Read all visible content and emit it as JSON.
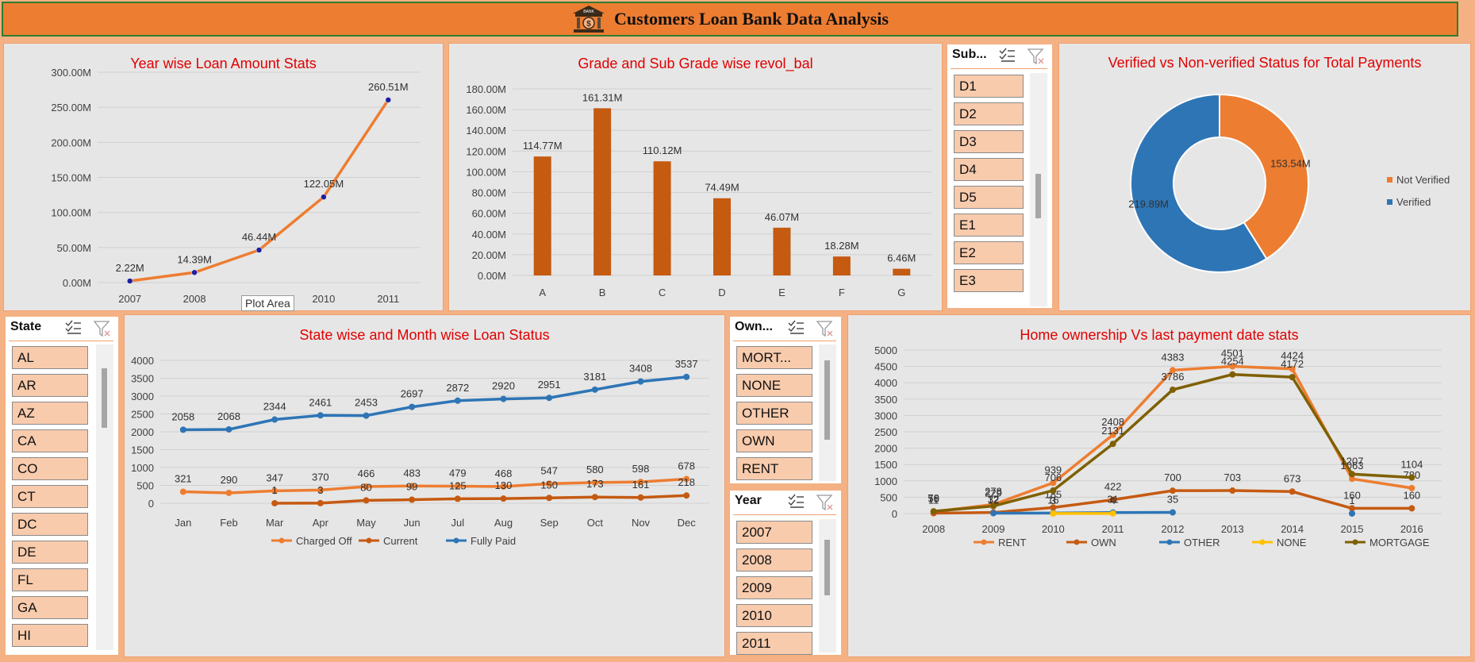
{
  "header": {
    "title": "Customers Loan Bank Data Analysis",
    "logo_text": "BANK"
  },
  "tooltip": "Plot Area",
  "slicers": {
    "subgrade": {
      "title": "Sub...",
      "items": [
        "D1",
        "D2",
        "D3",
        "D4",
        "D5",
        "E1",
        "E2",
        "E3"
      ]
    },
    "state": {
      "title": "State",
      "items": [
        "AL",
        "AR",
        "AZ",
        "CA",
        "CO",
        "CT",
        "DC",
        "DE",
        "FL",
        "GA",
        "HI"
      ]
    },
    "ownership": {
      "title": "Own...",
      "items": [
        "MORT...",
        "NONE",
        "OTHER",
        "OWN",
        "RENT"
      ]
    },
    "year": {
      "title": "Year",
      "items": [
        "2007",
        "2008",
        "2009",
        "2010",
        "2011"
      ]
    }
  },
  "chart_data": [
    {
      "type": "line",
      "title": "Year wise Loan Amount Stats",
      "x": [
        "2007",
        "2008",
        "2009",
        "2010",
        "2011"
      ],
      "values": [
        2.22,
        14.39,
        46.44,
        122.05,
        260.51
      ],
      "data_labels": [
        "2.22M",
        "14.39M",
        "46.44M",
        "122.05M",
        "260.51M"
      ],
      "yticks": [
        "0.00M",
        "50.00M",
        "100.00M",
        "150.00M",
        "200.00M",
        "250.00M",
        "300.00M"
      ],
      "ylim": [
        0,
        300
      ],
      "color": "#ed7d31"
    },
    {
      "type": "bar",
      "title": "Grade and Sub Grade wise revol_bal",
      "categories": [
        "A",
        "B",
        "C",
        "D",
        "E",
        "F",
        "G"
      ],
      "values": [
        114.77,
        161.31,
        110.12,
        74.49,
        46.07,
        18.28,
        6.46
      ],
      "data_labels": [
        "114.77M",
        "161.31M",
        "110.12M",
        "74.49M",
        "46.07M",
        "18.28M",
        "6.46M"
      ],
      "yticks": [
        "0.00M",
        "20.00M",
        "40.00M",
        "60.00M",
        "80.00M",
        "100.00M",
        "120.00M",
        "140.00M",
        "160.00M",
        "180.00M"
      ],
      "ylim": [
        0,
        180
      ],
      "color": "#c55a11"
    },
    {
      "type": "pie",
      "title": "Verified vs Non-verified Status for Total Payments",
      "labels": [
        "Not Verified",
        "Verified"
      ],
      "values": [
        153.54,
        219.89
      ],
      "data_labels": [
        "153.54M",
        "219.89M"
      ],
      "colors": [
        "#ed7d31",
        "#2e75b6"
      ],
      "legend": "right"
    },
    {
      "type": "line",
      "title": "State wise and Month wise Loan Status",
      "categories": [
        "Jan",
        "Feb",
        "Mar",
        "Apr",
        "May",
        "Jun",
        "Jul",
        "Aug",
        "Sep",
        "Oct",
        "Nov",
        "Dec"
      ],
      "ylim": [
        0,
        4000
      ],
      "yticks": [
        "0",
        "500",
        "1000",
        "1500",
        "2000",
        "2500",
        "3000",
        "3500",
        "4000"
      ],
      "legend": "bottom",
      "series": [
        {
          "name": "Charged Off",
          "color": "#ed7d31",
          "values": [
            321,
            290,
            347,
            370,
            466,
            483,
            479,
            468,
            547,
            580,
            598,
            678
          ]
        },
        {
          "name": "Current",
          "color": "#c55a11",
          "values": [
            null,
            null,
            1,
            3,
            80,
            99,
            125,
            130,
            150,
            173,
            161,
            218
          ]
        },
        {
          "name": "Fully Paid",
          "color": "#2e75b6",
          "values": [
            2058,
            2068,
            2344,
            2461,
            2453,
            2697,
            2872,
            2920,
            2951,
            3181,
            3408,
            3537
          ]
        }
      ]
    },
    {
      "type": "line",
      "title": "Home ownership Vs last payment date stats",
      "categories": [
        "2008",
        "2009",
        "2010",
        "2011",
        "2012",
        "2013",
        "2014",
        "2015",
        "2016"
      ],
      "ylim": [
        0,
        5000
      ],
      "yticks": [
        "0",
        "500",
        "1000",
        "1500",
        "2000",
        "2500",
        "3000",
        "3500",
        "4000",
        "4500",
        "5000"
      ],
      "legend": "bottom",
      "series": [
        {
          "name": "RENT",
          "color": "#ed7d31",
          "values": [
            58,
            278,
            939,
            2408,
            4383,
            4501,
            4424,
            1063,
            780
          ]
        },
        {
          "name": "OWN",
          "color": "#c55a11",
          "values": [
            11,
            32,
            185,
            422,
            700,
            703,
            673,
            160,
            160
          ]
        },
        {
          "name": "OTHER",
          "color": "#2e75b6",
          "values": [
            null,
            12,
            16,
            31,
            35,
            null,
            null,
            1,
            null
          ]
        },
        {
          "name": "NONE",
          "color": "#ffc000",
          "values": [
            null,
            null,
            3,
            4,
            null,
            null,
            null,
            null,
            null
          ]
        },
        {
          "name": "MORTGAGE",
          "color": "#7f6000",
          "values": [
            70,
            229,
            706,
            2131,
            3786,
            4254,
            4172,
            1207,
            1104
          ]
        }
      ]
    }
  ]
}
